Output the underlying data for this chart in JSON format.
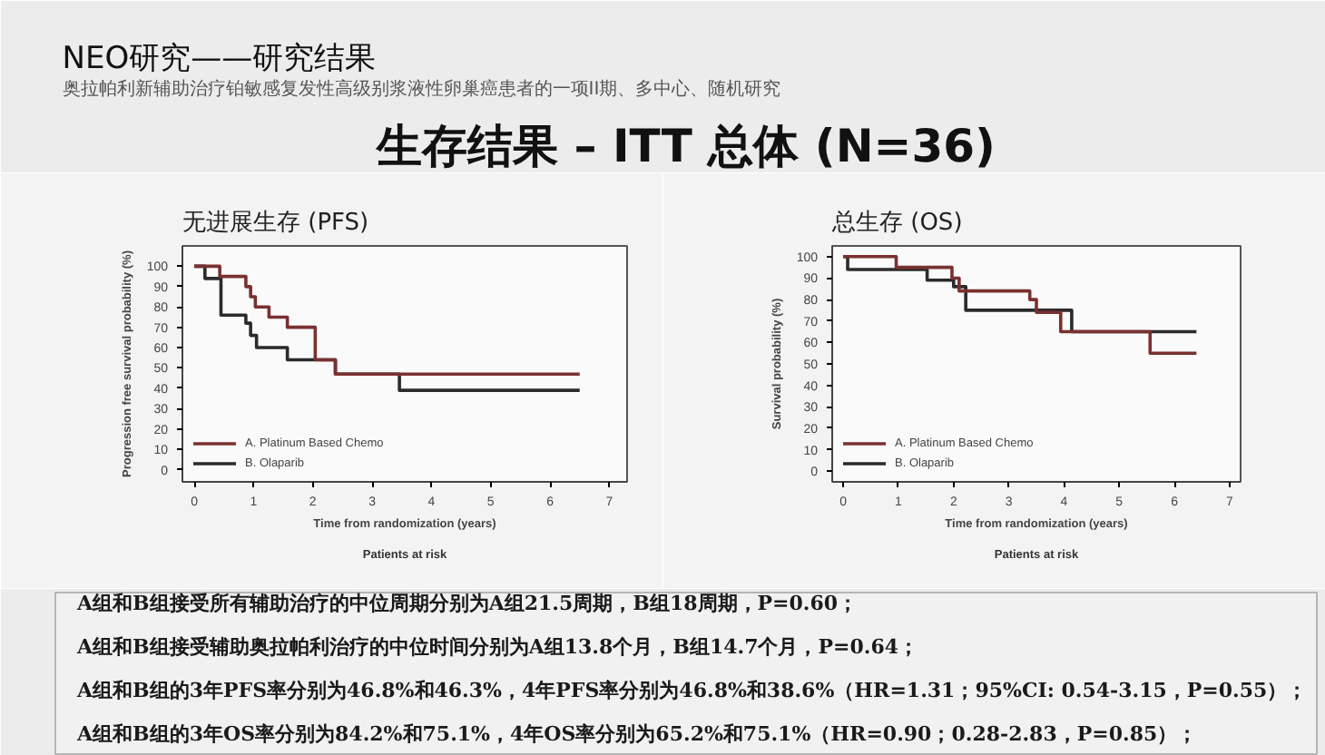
{
  "chart_data": [
    {
      "type": "other",
      "title": "NEO研究——研究结果",
      "subtitle": "奥拉帕利新辅助治疗铂敏感复发性高级别浆液性卵巢癌患者的一项II期、多中心、随机研究",
      "annotations": [
        "生存结果 – ITT 总体 (N=36)"
      ]
    },
    {
      "type": "step",
      "title": "无进展生存 (PFS)",
      "xlabel": "Time from randomization (years)",
      "ylabel": "Progression free survival probability (%)",
      "annotations": [
        "Patients at risk"
      ],
      "xlim": [
        -0.2,
        7.3
      ],
      "ylim": [
        -6,
        110
      ],
      "xticks": [
        0,
        1,
        2,
        3,
        4,
        5,
        6,
        7
      ],
      "yticks": [
        0,
        10,
        20,
        30,
        40,
        50,
        60,
        70,
        80,
        90,
        100
      ],
      "legend": "bottom left",
      "series": [
        {
          "name": "B. Olaparib",
          "color": "#2b2b2b",
          "x": [
            0,
            0.18,
            0.45,
            0.87,
            0.95,
            1.05,
            1.57,
            2.38,
            3.46,
            6.5
          ],
          "values": [
            100,
            94,
            76,
            72,
            66,
            60,
            54,
            47,
            39,
            39
          ]
        },
        {
          "name": "A. Platinum Based Chemo",
          "color": "#7a3030",
          "x": [
            0,
            0.43,
            0.87,
            0.95,
            1.03,
            1.26,
            1.57,
            2.04,
            2.38,
            6.5
          ],
          "values": [
            100,
            95,
            90,
            85,
            80,
            75,
            70,
            54,
            47,
            47
          ]
        }
      ]
    },
    {
      "type": "step",
      "title": "总生存 (OS)",
      "xlabel": "Time from randomization (years)",
      "ylabel": "Survival probability (%)",
      "annotations": [
        "Patients at risk"
      ],
      "xlim": [
        -0.2,
        7.2
      ],
      "ylim": [
        -5,
        105
      ],
      "xticks": [
        0,
        1,
        2,
        3,
        4,
        5,
        6,
        7
      ],
      "yticks": [
        0,
        10,
        20,
        30,
        40,
        50,
        60,
        70,
        80,
        90,
        100
      ],
      "legend": "bottom left",
      "series": [
        {
          "name": "B. Olaparib",
          "color": "#2b2b2b",
          "x": [
            0,
            0.08,
            1.52,
            2.0,
            2.22,
            4.14,
            6.4
          ],
          "values": [
            100,
            94,
            89,
            86,
            75,
            65,
            65
          ]
        },
        {
          "name": "A. Platinum Based Chemo",
          "color": "#7a3030",
          "x": [
            0,
            0.96,
            1.97,
            2.1,
            3.38,
            3.5,
            3.94,
            5.56,
            6.4
          ],
          "values": [
            100,
            95,
            90,
            84,
            80,
            74,
            65,
            55,
            55
          ]
        }
      ]
    },
    {
      "type": "other",
      "annotations": [
        "A组和B组接受所有辅助治疗的中位周期分别为A组21.5周期，B组18周期，P=0.60；",
        "A组和B组接受辅助奥拉帕利治疗的中位时间分别为A组13.8个月，B组14.7个月，P=0.64；",
        "A组和B组的3年PFS率分别为46.8%和46.3%，4年PFS率分别为46.8%和38.6%（HR=1.31；95%CI: 0.54-3.15，P=0.55）；",
        "A组和B组的3年OS率分别为84.2%和75.1%，4年OS率分别为65.2%和75.1%（HR=0.90；0.28-2.83，P=0.85）；"
      ]
    }
  ]
}
